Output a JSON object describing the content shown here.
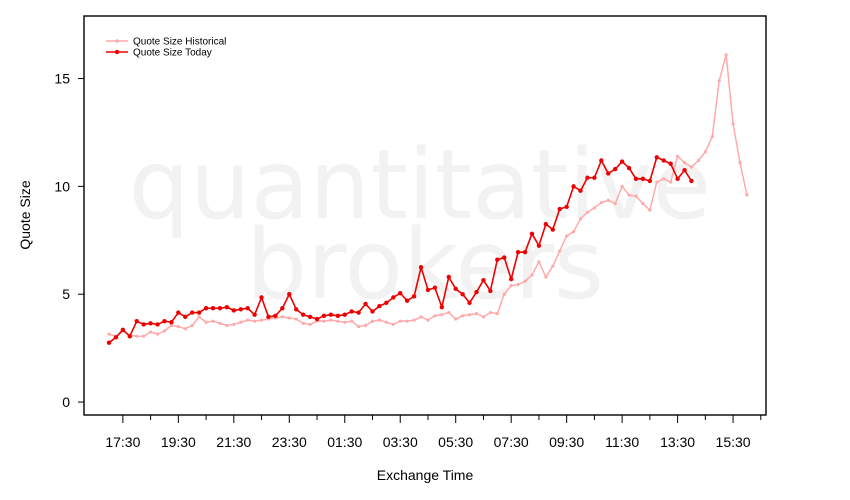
{
  "watermark": {
    "line1": "quantitative",
    "line2": "brokers"
  },
  "chart_data": {
    "type": "line",
    "xlabel": "Exchange Time",
    "ylabel": "Quote Size",
    "ylim": [
      -0.6,
      17.9
    ],
    "yticks": [
      0,
      5,
      10,
      15
    ],
    "xticks": [
      "17:30",
      "19:30",
      "21:30",
      "23:30",
      "01:30",
      "03:30",
      "05:30",
      "07:30",
      "09:30",
      "11:30",
      "13:30",
      "15:30"
    ],
    "x_start_label": "17:00",
    "x_interval_minutes": 15,
    "legend_position": "top-left",
    "grid": false,
    "series": [
      {
        "name": "Quote Size Historical",
        "color": "#ffaaaa",
        "values": [
          3.15,
          3.05,
          3.3,
          3.1,
          3.05,
          3.05,
          3.25,
          3.15,
          3.3,
          3.55,
          3.5,
          3.4,
          3.55,
          3.95,
          3.7,
          3.75,
          3.65,
          3.55,
          3.6,
          3.7,
          3.8,
          3.75,
          3.8,
          3.85,
          3.9,
          3.95,
          3.9,
          3.85,
          3.65,
          3.6,
          3.75,
          3.75,
          3.8,
          3.75,
          3.7,
          3.75,
          3.5,
          3.55,
          3.75,
          3.8,
          3.7,
          3.6,
          3.75,
          3.75,
          3.8,
          3.95,
          3.8,
          4.0,
          4.05,
          4.15,
          3.85,
          4.0,
          4.05,
          4.1,
          3.95,
          4.15,
          4.1,
          5.0,
          5.4,
          5.45,
          5.6,
          5.9,
          6.5,
          5.8,
          6.3,
          7.0,
          7.7,
          7.9,
          8.5,
          8.8,
          9.0,
          9.25,
          9.35,
          9.2,
          10.0,
          9.6,
          9.55,
          9.2,
          8.9,
          10.2,
          10.35,
          10.2,
          11.4,
          11.1,
          10.9,
          11.2,
          11.6,
          12.3,
          14.9,
          16.1,
          12.9,
          11.1,
          9.6
        ]
      },
      {
        "name": "Quote Size Today",
        "color": "#ee0000",
        "values": [
          2.75,
          3.0,
          3.35,
          3.05,
          3.75,
          3.6,
          3.65,
          3.6,
          3.75,
          3.7,
          4.15,
          3.95,
          4.15,
          4.15,
          4.35,
          4.35,
          4.35,
          4.4,
          4.25,
          4.3,
          4.35,
          4.05,
          4.85,
          3.95,
          4.0,
          4.35,
          5.0,
          4.3,
          4.05,
          3.95,
          3.85,
          4.0,
          4.05,
          4.0,
          4.05,
          4.2,
          4.15,
          4.55,
          4.2,
          4.45,
          4.6,
          4.85,
          5.05,
          4.7,
          4.9,
          6.25,
          5.2,
          5.3,
          4.4,
          5.8,
          5.25,
          5.0,
          4.6,
          5.1,
          5.65,
          5.15,
          6.6,
          6.7,
          5.7,
          6.95,
          6.95,
          7.8,
          7.25,
          8.25,
          8.0,
          8.95,
          9.05,
          10.0,
          9.8,
          10.4,
          10.4,
          11.2,
          10.6,
          10.8,
          11.15,
          10.85,
          10.35,
          10.35,
          10.25,
          11.35,
          11.2,
          11.05,
          10.35,
          10.75,
          10.25
        ]
      }
    ]
  }
}
